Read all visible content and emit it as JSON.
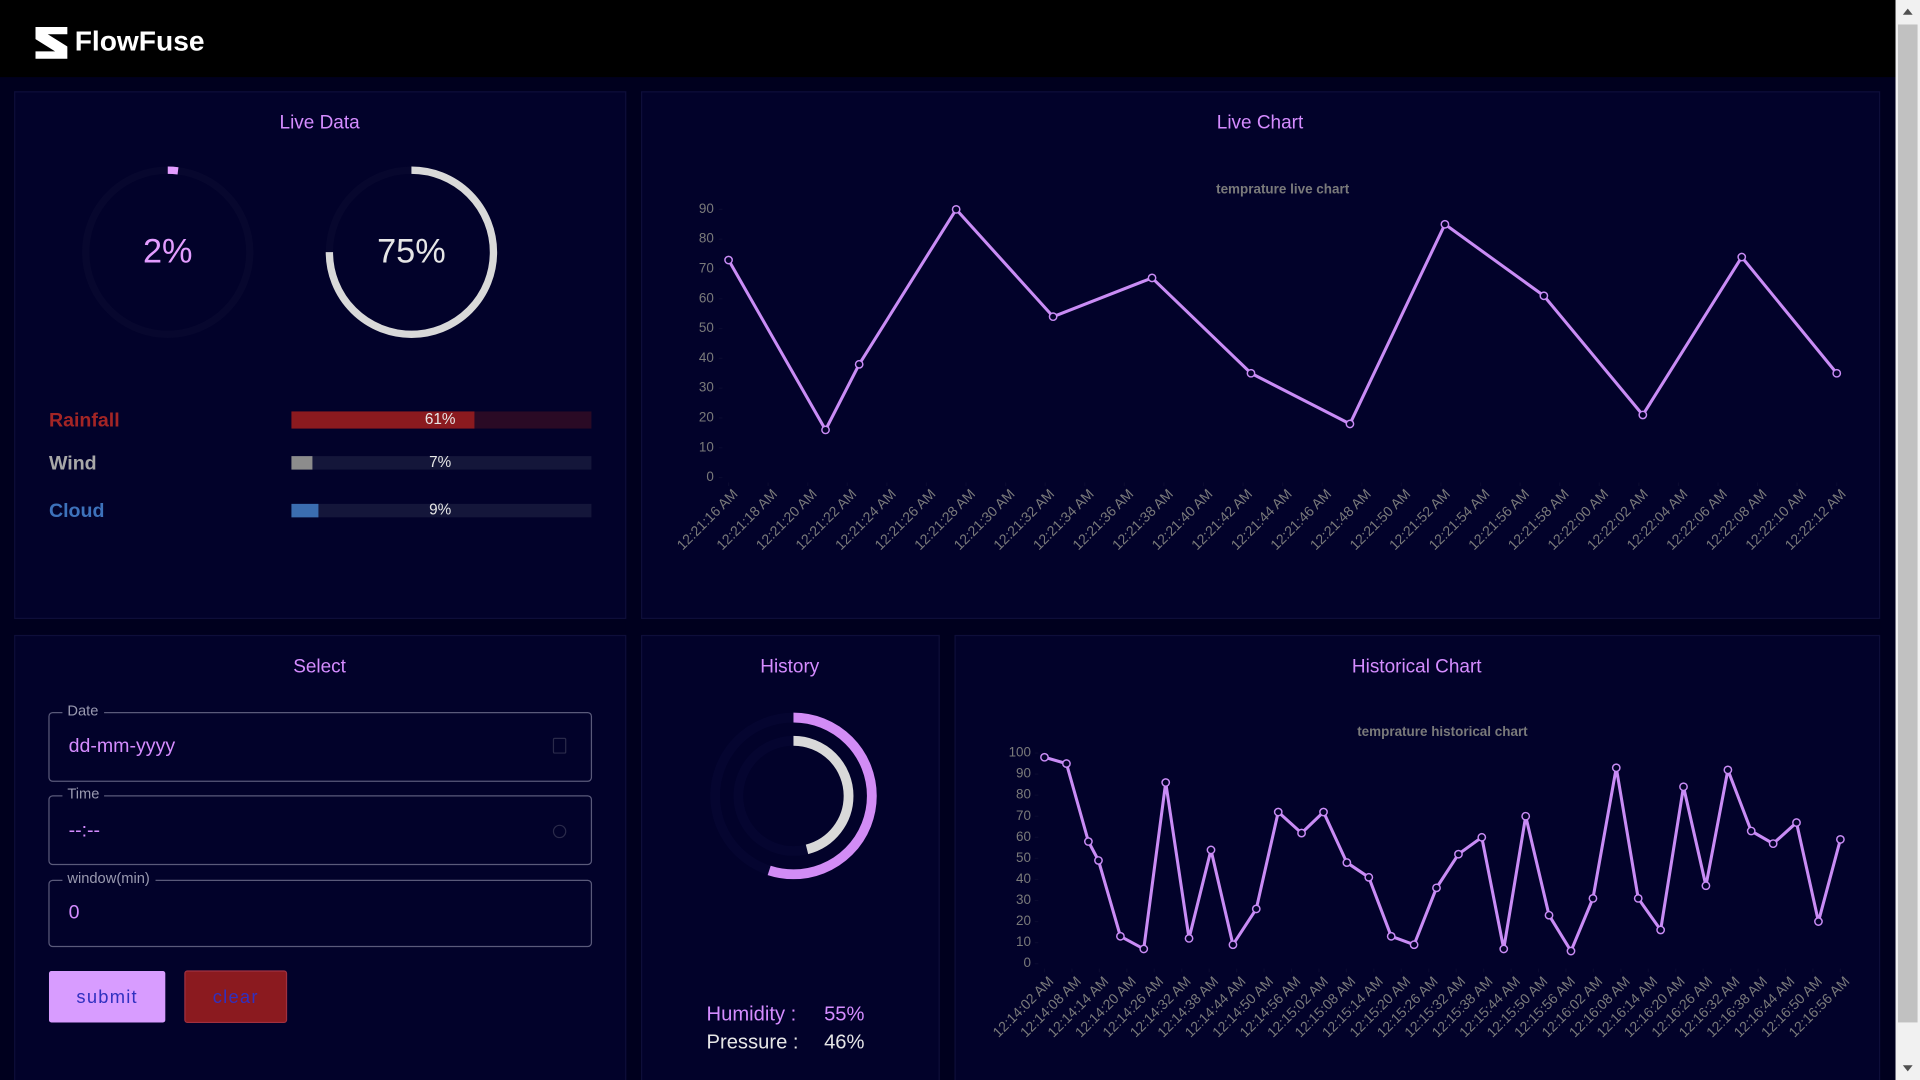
{
  "header": {
    "title": "FlowFuse"
  },
  "live_data": {
    "title": "Live Data",
    "gauges": [
      {
        "value": 2,
        "label": "2%",
        "color": "#e39cff"
      },
      {
        "value": 75,
        "label": "75%",
        "color": "#d9d9d9"
      }
    ],
    "bars": [
      {
        "name": "Rainfall",
        "value": 61,
        "label": "61%",
        "color": "#8b1a1f"
      },
      {
        "name": "Wind",
        "value": 7,
        "label": "7%",
        "color": "#8c8c8c"
      },
      {
        "name": "Cloud",
        "value": 9,
        "label": "9%",
        "color": "#3b6db0"
      }
    ]
  },
  "live_chart": {
    "panel_title": "Live Chart",
    "type": "line",
    "title": "temprature live chart",
    "color": "#c98cf5",
    "x": [
      16,
      20.9,
      22.6,
      27.5,
      32.4,
      37.4,
      42.4,
      47.4,
      52.2,
      57.2,
      62.2,
      67.2,
      72
    ],
    "values": [
      73,
      16,
      38,
      90,
      54,
      67,
      35,
      18,
      85,
      61,
      21,
      74,
      35
    ],
    "xlim": [
      16,
      72
    ],
    "xticks": [
      {
        "value": 16,
        "label": "12:21:16 AM"
      },
      {
        "value": 18,
        "label": "12:21:18 AM"
      },
      {
        "value": 20,
        "label": "12:21:20 AM"
      },
      {
        "value": 22,
        "label": "12:21:22 AM"
      },
      {
        "value": 24,
        "label": "12:21:24 AM"
      },
      {
        "value": 26,
        "label": "12:21:26 AM"
      },
      {
        "value": 28,
        "label": "12:21:28 AM"
      },
      {
        "value": 30,
        "label": "12:21:30 AM"
      },
      {
        "value": 32,
        "label": "12:21:32 AM"
      },
      {
        "value": 34,
        "label": "12:21:34 AM"
      },
      {
        "value": 36,
        "label": "12:21:36 AM"
      },
      {
        "value": 38,
        "label": "12:21:38 AM"
      },
      {
        "value": 40,
        "label": "12:21:40 AM"
      },
      {
        "value": 42,
        "label": "12:21:42 AM"
      },
      {
        "value": 44,
        "label": "12:21:44 AM"
      },
      {
        "value": 46,
        "label": "12:21:46 AM"
      },
      {
        "value": 48,
        "label": "12:21:48 AM"
      },
      {
        "value": 50,
        "label": "12:21:50 AM"
      },
      {
        "value": 52,
        "label": "12:21:52 AM"
      },
      {
        "value": 54,
        "label": "12:21:54 AM"
      },
      {
        "value": 56,
        "label": "12:21:56 AM"
      },
      {
        "value": 58,
        "label": "12:21:58 AM"
      },
      {
        "value": 60,
        "label": "12:22:00 AM"
      },
      {
        "value": 62,
        "label": "12:22:02 AM"
      },
      {
        "value": 64,
        "label": "12:22:04 AM"
      },
      {
        "value": 66,
        "label": "12:22:06 AM"
      },
      {
        "value": 68,
        "label": "12:22:08 AM"
      },
      {
        "value": 70,
        "label": "12:22:10 AM"
      },
      {
        "value": 72,
        "label": "12:22:12 AM"
      }
    ],
    "ylim": [
      0,
      90
    ],
    "yticks": [
      0,
      10,
      20,
      30,
      40,
      50,
      60,
      70,
      80,
      90
    ]
  },
  "select": {
    "title": "Select",
    "fields": [
      {
        "label": "Date",
        "value": "dd-mm-yyyy"
      },
      {
        "label": "Time",
        "value": "--:--"
      },
      {
        "label": "window(min)",
        "value": "0"
      }
    ],
    "buttons": [
      "submit",
      "clear"
    ]
  },
  "history": {
    "title": "History",
    "gauges": [
      {
        "name": "Humidity :",
        "value": 55,
        "label": "55%",
        "color": "#d28cf5"
      },
      {
        "name": "Pressure :",
        "value": 46,
        "label": "46%",
        "color": "#d9d9d9"
      }
    ]
  },
  "historical_chart": {
    "panel_title": "Historical Chart",
    "type": "line",
    "title": "temprature historical chart",
    "color": "#c98cf5",
    "x": [
      2,
      6.8,
      11.6,
      13.8,
      18.6,
      23.7,
      28.5,
      33.6,
      38.4,
      43.2,
      48.3,
      53.1,
      58.2,
      63,
      68.1,
      72.9,
      77.8,
      82.8,
      87.7,
      92.5,
      97.6,
      102.4,
      107.2,
      112.3,
      117.1,
      121.9,
      127,
      131.8,
      136.7,
      141.7,
      146.6,
      151.4,
      156.5,
      161.3,
      166.4,
      171.2,
      176
    ],
    "values": [
      98,
      95,
      58,
      49,
      13,
      7,
      86,
      12,
      54,
      9,
      26,
      72,
      62,
      72,
      48,
      41,
      13,
      9,
      36,
      52,
      60,
      7,
      70,
      23,
      6,
      31,
      93,
      31,
      16,
      84,
      37,
      92,
      63,
      57,
      67,
      20,
      59
    ],
    "xlim": [
      2,
      176
    ],
    "xticks": [
      {
        "value": 2,
        "label": "12:14:02 AM"
      },
      {
        "value": 8,
        "label": "12:14:08 AM"
      },
      {
        "value": 14,
        "label": "12:14:14 AM"
      },
      {
        "value": 20,
        "label": "12:14:20 AM"
      },
      {
        "value": 26,
        "label": "12:14:26 AM"
      },
      {
        "value": 32,
        "label": "12:14:32 AM"
      },
      {
        "value": 38,
        "label": "12:14:38 AM"
      },
      {
        "value": 44,
        "label": "12:14:44 AM"
      },
      {
        "value": 50,
        "label": "12:14:50 AM"
      },
      {
        "value": 56,
        "label": "12:14:56 AM"
      },
      {
        "value": 62,
        "label": "12:15:02 AM"
      },
      {
        "value": 68,
        "label": "12:15:08 AM"
      },
      {
        "value": 74,
        "label": "12:15:14 AM"
      },
      {
        "value": 80,
        "label": "12:15:20 AM"
      },
      {
        "value": 86,
        "label": "12:15:26 AM"
      },
      {
        "value": 92,
        "label": "12:15:32 AM"
      },
      {
        "value": 98,
        "label": "12:15:38 AM"
      },
      {
        "value": 104,
        "label": "12:15:44 AM"
      },
      {
        "value": 110,
        "label": "12:15:50 AM"
      },
      {
        "value": 116,
        "label": "12:15:56 AM"
      },
      {
        "value": 122,
        "label": "12:16:02 AM"
      },
      {
        "value": 128,
        "label": "12:16:08 AM"
      },
      {
        "value": 134,
        "label": "12:16:14 AM"
      },
      {
        "value": 140,
        "label": "12:16:20 AM"
      },
      {
        "value": 146,
        "label": "12:16:26 AM"
      },
      {
        "value": 152,
        "label": "12:16:32 AM"
      },
      {
        "value": 158,
        "label": "12:16:38 AM"
      },
      {
        "value": 164,
        "label": "12:16:44 AM"
      },
      {
        "value": 170,
        "label": "12:16:50 AM"
      },
      {
        "value": 176,
        "label": "12:16:56 AM"
      }
    ],
    "ylim": [
      0,
      100
    ],
    "yticks": [
      0,
      10,
      20,
      30,
      40,
      50,
      60,
      70,
      80,
      90,
      100
    ]
  }
}
